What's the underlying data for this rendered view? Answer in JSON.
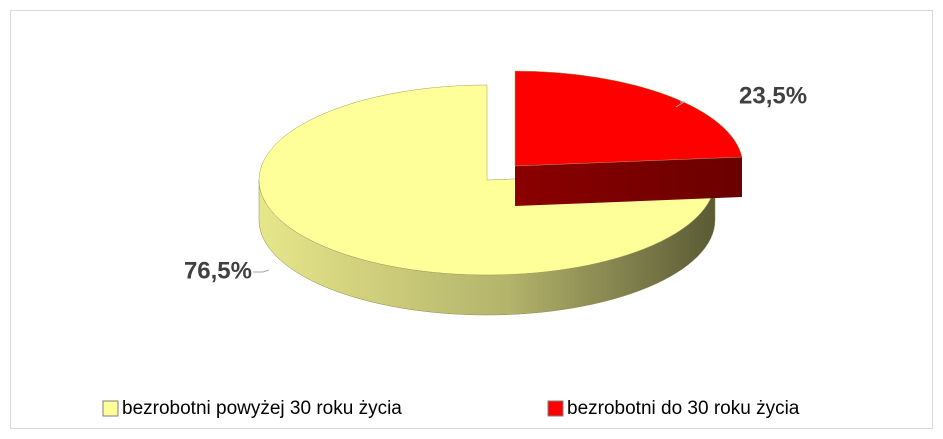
{
  "chart_data": {
    "type": "pie",
    "categories": [
      "bezrobotni powyżej 30 roku życia",
      "bezrobotni do 30 roku życia"
    ],
    "values": [
      76.5,
      23.5
    ],
    "value_labels": [
      "76,5%",
      "23,5%"
    ],
    "colors": [
      "#ffff99",
      "#ff0000"
    ],
    "legend": "bottom"
  }
}
